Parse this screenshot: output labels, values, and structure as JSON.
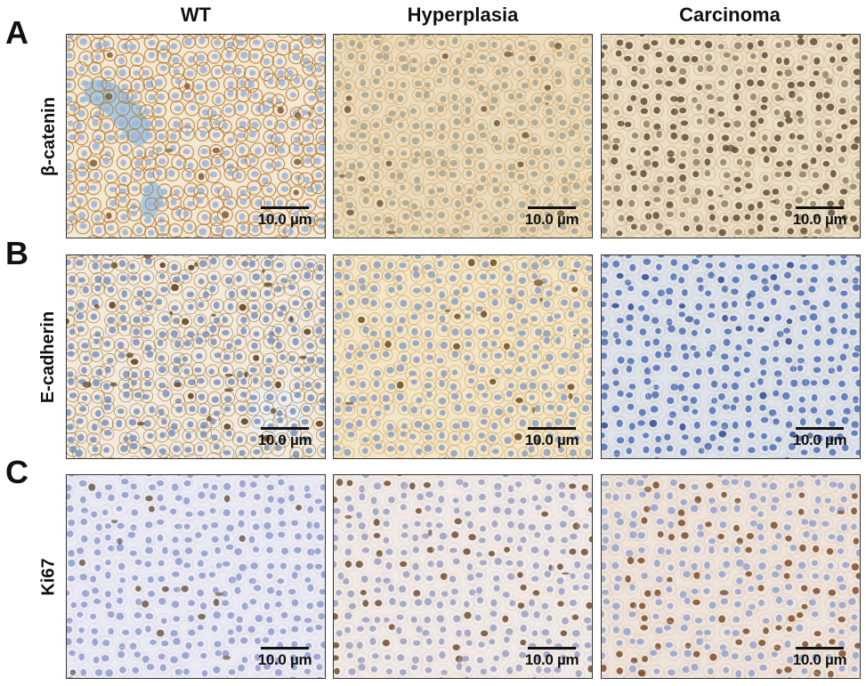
{
  "columns": [
    "WT",
    "Hyperplasia",
    "Carcinoma"
  ],
  "rows": [
    {
      "panel": "A",
      "marker": "β-catenin"
    },
    {
      "panel": "B",
      "marker": "E-cadherin"
    },
    {
      "panel": "C",
      "marker": "Ki67"
    }
  ],
  "scale_bar": "10.0 µm",
  "tiles": [
    {
      "id": "A-WT",
      "bg": "#f3e8d4",
      "membrane": "#b07530",
      "nucleus": "#9db3d6",
      "dark": "#7a5a35",
      "vessel": "#9fc5e3"
    },
    {
      "id": "A-Hyp",
      "bg": "#ecdcbd",
      "membrane": "#c69a55",
      "nucleus": "#a8a48f",
      "dark": "#6f5a3e",
      "vessel": ""
    },
    {
      "id": "A-Car",
      "bg": "#ebdfc8",
      "membrane": "#c9a671",
      "nucleus": "#8f8068",
      "dark": "#5f4c36",
      "vessel": ""
    },
    {
      "id": "B-WT",
      "bg": "#f2ebdd",
      "membrane": "#9a6a30",
      "nucleus": "#7c93bd",
      "dark": "#5a3a18",
      "vessel": "#e9f0f2"
    },
    {
      "id": "B-Hyp",
      "bg": "#f3e6c8",
      "membrane": "#c99a55",
      "nucleus": "#8ca0c0",
      "dark": "#6b4a20",
      "vessel": ""
    },
    {
      "id": "B-Car",
      "bg": "#dfe3ec",
      "membrane": "#c8c6b8",
      "nucleus": "#4f6fb5",
      "dark": "#2e4a90",
      "vessel": ""
    },
    {
      "id": "C-WT",
      "bg": "#ecebf3",
      "membrane": "#d6d2e0",
      "nucleus": "#8e9ccc",
      "dark": "#6a5a48",
      "vessel": ""
    },
    {
      "id": "C-Hyp",
      "bg": "#f1eae6",
      "membrane": "#ddd2cc",
      "nucleus": "#9aa0c2",
      "dark": "#6e4e34",
      "vessel": ""
    },
    {
      "id": "C-Car",
      "bg": "#efe4dc",
      "membrane": "#d8c3b0",
      "nucleus": "#93a2cc",
      "dark": "#7a4e2a",
      "vessel": ""
    }
  ]
}
